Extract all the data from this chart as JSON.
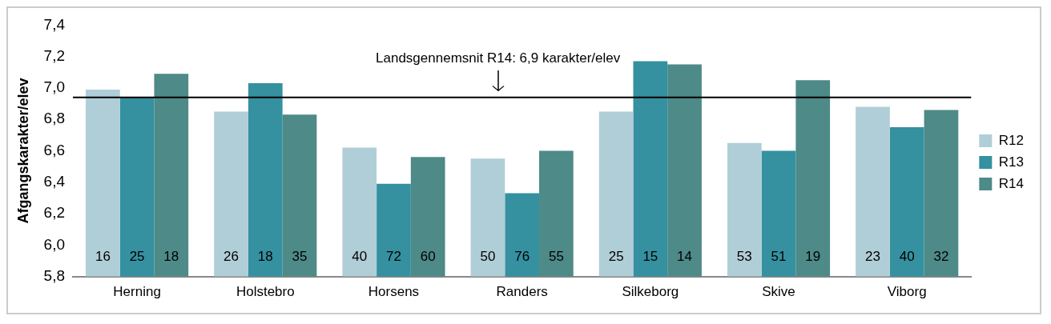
{
  "chart_data": {
    "type": "bar",
    "ylabel": "Afgangskarakter/elev",
    "categories": [
      "Herning",
      "Holstebro",
      "Horsens",
      "Randers",
      "Silkeborg",
      "Skive",
      "Viborg"
    ],
    "series": [
      {
        "name": "R12",
        "color": "#b0ced8",
        "values": [
          6.99,
          6.85,
          6.62,
          6.55,
          6.85,
          6.65,
          6.88
        ]
      },
      {
        "name": "R13",
        "color": "#3590a0",
        "values": [
          6.94,
          7.03,
          6.39,
          6.33,
          7.17,
          6.6,
          6.75
        ]
      },
      {
        "name": "R14",
        "color": "#4d8a88",
        "values": [
          7.09,
          6.83,
          6.56,
          6.6,
          7.15,
          7.05,
          6.86
        ]
      }
    ],
    "annotations": [
      "16",
      "25",
      "18",
      "26",
      "18",
      "35",
      "40",
      "72",
      "60",
      "50",
      "76",
      "55",
      "25",
      "15",
      "14",
      "53",
      "51",
      "19",
      "23",
      "40",
      "32"
    ],
    "ylim": [
      5.8,
      7.4
    ],
    "yticks": [
      {
        "value": 5.8,
        "label": "5,8"
      },
      {
        "value": 6.0,
        "label": "6,0"
      },
      {
        "value": 6.2,
        "label": "6,2"
      },
      {
        "value": 6.4,
        "label": "6,4"
      },
      {
        "value": 6.6,
        "label": "6,6"
      },
      {
        "value": 6.8,
        "label": "6,8"
      },
      {
        "value": 7.0,
        "label": "7,0"
      },
      {
        "value": 7.2,
        "label": "7,2"
      },
      {
        "value": 7.4,
        "label": "7,4"
      }
    ],
    "ref_lines": [
      {
        "axis": "y",
        "value": 6.94,
        "label": "Landsgennemsnit R14: 6,9 karakter/elev",
        "color": "#000000"
      }
    ],
    "grid": false,
    "legend": "right"
  }
}
